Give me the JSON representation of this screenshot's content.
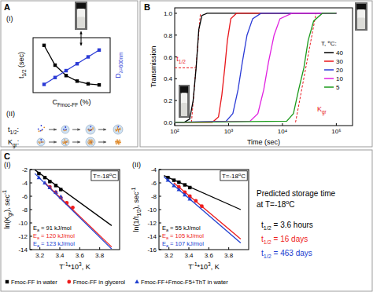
{
  "chart_data": [
    {
      "type": "line",
      "panel_label": "(I)",
      "xlabel": [
        {
          "t": "C"
        },
        {
          "t": "Fmoc-FF",
          "sub": true
        },
        {
          "t": " (%)"
        }
      ],
      "ylabel": [
        {
          "t": "t"
        },
        {
          "t": "1/2",
          "sub": true
        },
        {
          "t": " (sec)"
        }
      ],
      "y2label": [
        {
          "t": "D"
        },
        {
          "t": "λ=600nm",
          "sub": true
        }
      ],
      "xlim": [
        0,
        0.7
      ],
      "ylim": [
        0,
        10
      ],
      "y2lim": [
        0,
        2
      ],
      "tick_labels": false,
      "series": [
        {
          "color": "#000000",
          "marker": "square",
          "x": [
            0.1,
            0.2,
            0.3,
            0.4,
            0.5,
            0.6
          ],
          "values": [
            8.6,
            5.0,
            3.1,
            2.1,
            1.6,
            1.4
          ]
        },
        {
          "color": "#2b3bd6",
          "marker": "square",
          "axis": "y2",
          "x": [
            0.1,
            0.2,
            0.3,
            0.4,
            0.5,
            0.6
          ],
          "values": [
            0.3,
            0.55,
            0.8,
            1.05,
            1.3,
            1.55
          ]
        }
      ]
    },
    {
      "type": "line",
      "xlabel": "Time (sec)",
      "ylabel": "Transmission",
      "log": "x",
      "xlim": [
        100,
        200000
      ],
      "ylim": [
        -0.03,
        1.05
      ],
      "xticks": [
        {
          "value": 100,
          "label": "10²"
        },
        {
          "value": 1000,
          "label": "10³"
        },
        {
          "value": 10000,
          "label": "10⁴"
        },
        {
          "value": 100000,
          "label": "10⁵"
        }
      ],
      "yticks": [
        {
          "value": 0,
          "label": "0.0"
        },
        0.2,
        0.4,
        0.6,
        0.8,
        {
          "value": 1,
          "label": "1.0"
        }
      ],
      "legend": "right",
      "legend_title": [
        {
          "t": "T, "
        },
        {
          "t": "o",
          "sup": true
        },
        {
          "t": "C:"
        }
      ],
      "series": [
        {
          "name": "40",
          "color": "#000000",
          "x": [
            100,
            150,
            190,
            220,
            250,
            280,
            320,
            400,
            1000,
            100000
          ],
          "values": [
            0,
            0,
            0.03,
            0.2,
            0.5,
            0.85,
            0.98,
            1,
            1,
            1
          ]
        },
        {
          "name": "30",
          "color": "#e8161b",
          "x": [
            100,
            500,
            650,
            750,
            850,
            950,
            1100,
            1400,
            100000
          ],
          "values": [
            0,
            0,
            0.05,
            0.25,
            0.5,
            0.75,
            0.95,
            1,
            1
          ]
        },
        {
          "name": "20",
          "color": "#2b3bd6",
          "x": [
            100,
            900,
            1200,
            1500,
            1800,
            2200,
            2800,
            4000,
            100000
          ],
          "values": [
            0,
            0.01,
            0.08,
            0.3,
            0.55,
            0.8,
            0.95,
            1,
            1
          ]
        },
        {
          "name": "10",
          "color": "#e020e0",
          "x": [
            100,
            2500,
            3500,
            4500,
            5500,
            7000,
            9000,
            15000,
            100000
          ],
          "values": [
            0,
            0.01,
            0.08,
            0.3,
            0.55,
            0.8,
            0.95,
            1,
            1
          ]
        },
        {
          "name": "5",
          "color": "#1a9a1a",
          "x": [
            100,
            12000,
            16000,
            20000,
            25000,
            30000,
            38000,
            55000,
            100000
          ],
          "values": [
            0,
            0.01,
            0.08,
            0.3,
            0.5,
            0.75,
            0.93,
            1,
            1
          ]
        }
      ],
      "reference_lines": [
        {
          "x": [
            100,
            245
          ],
          "values": [
            0.5,
            0.5
          ],
          "color": "#e8161b",
          "line_style": "dashed"
        },
        {
          "x": [
            205,
            300
          ],
          "values": [
            0,
            1
          ],
          "color": "#e8161b",
          "line_style": "dashed"
        },
        {
          "x": [
            17500,
            42000
          ],
          "values": [
            0,
            1
          ],
          "color": "#e8161b",
          "line_style": "dashed"
        }
      ],
      "annotations": [
        {
          "text": [
            {
              "t": "t"
            },
            {
              "t": "1/2",
              "sub": true
            }
          ],
          "x": 108,
          "y": 0.56,
          "color": "#e8161b"
        },
        {
          "text": [
            {
              "t": "K"
            },
            {
              "t": "gr",
              "sub": true
            }
          ],
          "x": 44000,
          "y": 0.1,
          "color": "#e8161b"
        }
      ]
    },
    {
      "type": "scatter",
      "panel_label": "(I)",
      "xlabel": [
        {
          "t": "T"
        },
        {
          "t": "-1",
          "sup": true
        },
        {
          "t": "*10"
        },
        {
          "t": "3",
          "sup": true
        },
        {
          "t": ", K"
        }
      ],
      "ylabel": [
        {
          "t": "ln(K"
        },
        {
          "t": "gr",
          "sub": true
        },
        {
          "t": "), sec"
        },
        {
          "t": "-1",
          "sup": true
        }
      ],
      "xlim": [
        3.1,
        4.0
      ],
      "ylim": [
        -14,
        -2
      ],
      "xticks": [
        3.2,
        3.4,
        3.6,
        3.8
      ],
      "yticks": [
        -2,
        -4,
        -6,
        -8,
        -10,
        -12,
        -14
      ],
      "legend": "bottom",
      "box_label": [
        {
          "t": "T=-18"
        },
        {
          "t": "o",
          "sup": true
        },
        {
          "t": "C"
        }
      ],
      "series": [
        {
          "name": "Fmoc-FF in water",
          "color": "#000000",
          "marker": "square",
          "x": [
            3.19,
            3.25,
            3.3,
            3.36,
            3.41
          ],
          "values": [
            -2.6,
            -3.2,
            -3.8,
            -4.4,
            -5.0
          ]
        },
        {
          "name": "Fmoc-FF in glycerol",
          "color": "#ee1c1c",
          "marker": "circle",
          "x": [
            3.3,
            3.36,
            3.41,
            3.47,
            3.53
          ],
          "values": [
            -4.6,
            -5.4,
            -6.2,
            -7.0,
            -7.7
          ]
        },
        {
          "name": "Fmoc-FF+Fmoc-F5+ThT in water",
          "color": "#2040d0",
          "marker": "triangle",
          "x": [
            3.19,
            3.25,
            3.3,
            3.36,
            3.41
          ],
          "values": [
            -3.2,
            -4.0,
            -4.7,
            -5.4,
            -6.1
          ]
        },
        {
          "type": "line",
          "color": "#000000",
          "x": [
            3.15,
            3.92
          ],
          "values": [
            -2.05,
            -10.4
          ]
        },
        {
          "type": "line",
          "color": "#ee1c1c",
          "x": [
            3.25,
            3.92
          ],
          "values": [
            -4.0,
            -13.6
          ]
        },
        {
          "type": "line",
          "color": "#2040d0",
          "x": [
            3.15,
            3.92
          ],
          "values": [
            -2.6,
            -13.9
          ]
        }
      ],
      "annotations": [
        {
          "text": [
            {
              "t": "E"
            },
            {
              "t": "a",
              "sub": true
            },
            {
              "t": " = 91 kJ/mol"
            }
          ],
          "color": "#000000"
        },
        {
          "text": [
            {
              "t": "E"
            },
            {
              "t": "a",
              "sub": true
            },
            {
              "t": " = 120 kJ/mol"
            }
          ],
          "color": "#ee1c1c"
        },
        {
          "text": [
            {
              "t": "E"
            },
            {
              "t": "a",
              "sub": true
            },
            {
              "t": " = 123 kJ/mol"
            }
          ],
          "color": "#2040d0"
        }
      ]
    },
    {
      "type": "scatter",
      "panel_label": "(II)",
      "xlabel": [
        {
          "t": "T"
        },
        {
          "t": "-1",
          "sup": true
        },
        {
          "t": "*10"
        },
        {
          "t": "3",
          "sup": true
        },
        {
          "t": ", K"
        }
      ],
      "ylabel": [
        {
          "t": "ln(1/t"
        },
        {
          "t": "1/2",
          "sub": true
        },
        {
          "t": "), sec"
        },
        {
          "t": "-1",
          "sup": true
        }
      ],
      "xlim": [
        3.1,
        4.0
      ],
      "ylim": [
        -16,
        -4
      ],
      "xticks": [
        3.2,
        3.4,
        3.6,
        3.8
      ],
      "yticks": [
        -4,
        -6,
        -8,
        -10,
        -12,
        -14,
        -16
      ],
      "box_label": [
        {
          "t": "T=-18"
        },
        {
          "t": "o",
          "sup": true
        },
        {
          "t": "C"
        }
      ],
      "series": [
        {
          "color": "#000000",
          "marker": "square",
          "x": [
            3.19,
            3.25,
            3.3,
            3.36,
            3.41
          ],
          "values": [
            -5.2,
            -5.6,
            -5.9,
            -6.3,
            -6.7
          ]
        },
        {
          "color": "#ee1c1c",
          "marker": "circle",
          "x": [
            3.3,
            3.36,
            3.41,
            3.47,
            3.53
          ],
          "values": [
            -6.6,
            -7.4,
            -8.0,
            -8.7,
            -9.5
          ]
        },
        {
          "color": "#2040d0",
          "marker": "triangle",
          "x": [
            3.19,
            3.25,
            3.3,
            3.36,
            3.41
          ],
          "values": [
            -5.6,
            -6.4,
            -7.0,
            -7.8,
            -8.4
          ]
        },
        {
          "type": "line",
          "color": "#000000",
          "x": [
            3.15,
            3.92
          ],
          "values": [
            -4.9,
            -10.0
          ]
        },
        {
          "type": "line",
          "color": "#ee1c1c",
          "x": [
            3.25,
            3.92
          ],
          "values": [
            -6.0,
            -14.4
          ]
        },
        {
          "type": "line",
          "color": "#2040d0",
          "x": [
            3.15,
            3.92
          ],
          "values": [
            -5.1,
            -15.0
          ]
        }
      ],
      "annotations": [
        {
          "text": [
            {
              "t": "E"
            },
            {
              "t": "a",
              "sub": true
            },
            {
              "t": " = 55 kJ/mol"
            }
          ],
          "color": "#000000"
        },
        {
          "text": [
            {
              "t": "E"
            },
            {
              "t": "a",
              "sub": true
            },
            {
              "t": " = 105 kJ/mol"
            }
          ],
          "color": "#ee1c1c"
        },
        {
          "text": [
            {
              "t": "E"
            },
            {
              "t": "a",
              "sub": true
            },
            {
              "t": " = 107 kJ/mol"
            }
          ],
          "color": "#2040d0"
        }
      ]
    }
  ],
  "figure": {
    "panel_letters": [
      "A",
      "B",
      "C"
    ],
    "schematic": {
      "label": "(II)",
      "rows": [
        {
          "label": [
            {
              "t": "t"
            },
            {
              "t": "1/2",
              "sub": true
            },
            {
              "t": ":"
            }
          ]
        },
        {
          "label": [
            {
              "t": "K"
            },
            {
              "t": "gr",
              "sub": true
            },
            {
              "t": ":"
            }
          ]
        }
      ]
    },
    "prediction": {
      "title": "Predicted storage time",
      "subtitle": [
        {
          "t": "at T=-18"
        },
        {
          "t": "o",
          "sup": true
        },
        {
          "t": "C"
        }
      ],
      "lines": [
        {
          "text": [
            {
              "t": "t"
            },
            {
              "t": "1/2",
              "sub": true
            },
            {
              "t": " = 3.6 hours"
            }
          ],
          "color": "#000000"
        },
        {
          "text": [
            {
              "t": "t"
            },
            {
              "t": "1/2",
              "sub": true
            },
            {
              "t": " = 16 days"
            }
          ],
          "color": "#ee1c1c"
        },
        {
          "text": [
            {
              "t": "t"
            },
            {
              "t": "1/2",
              "sub": true
            },
            {
              "t": " = 463 days"
            }
          ],
          "color": "#2040d0"
        }
      ]
    }
  }
}
